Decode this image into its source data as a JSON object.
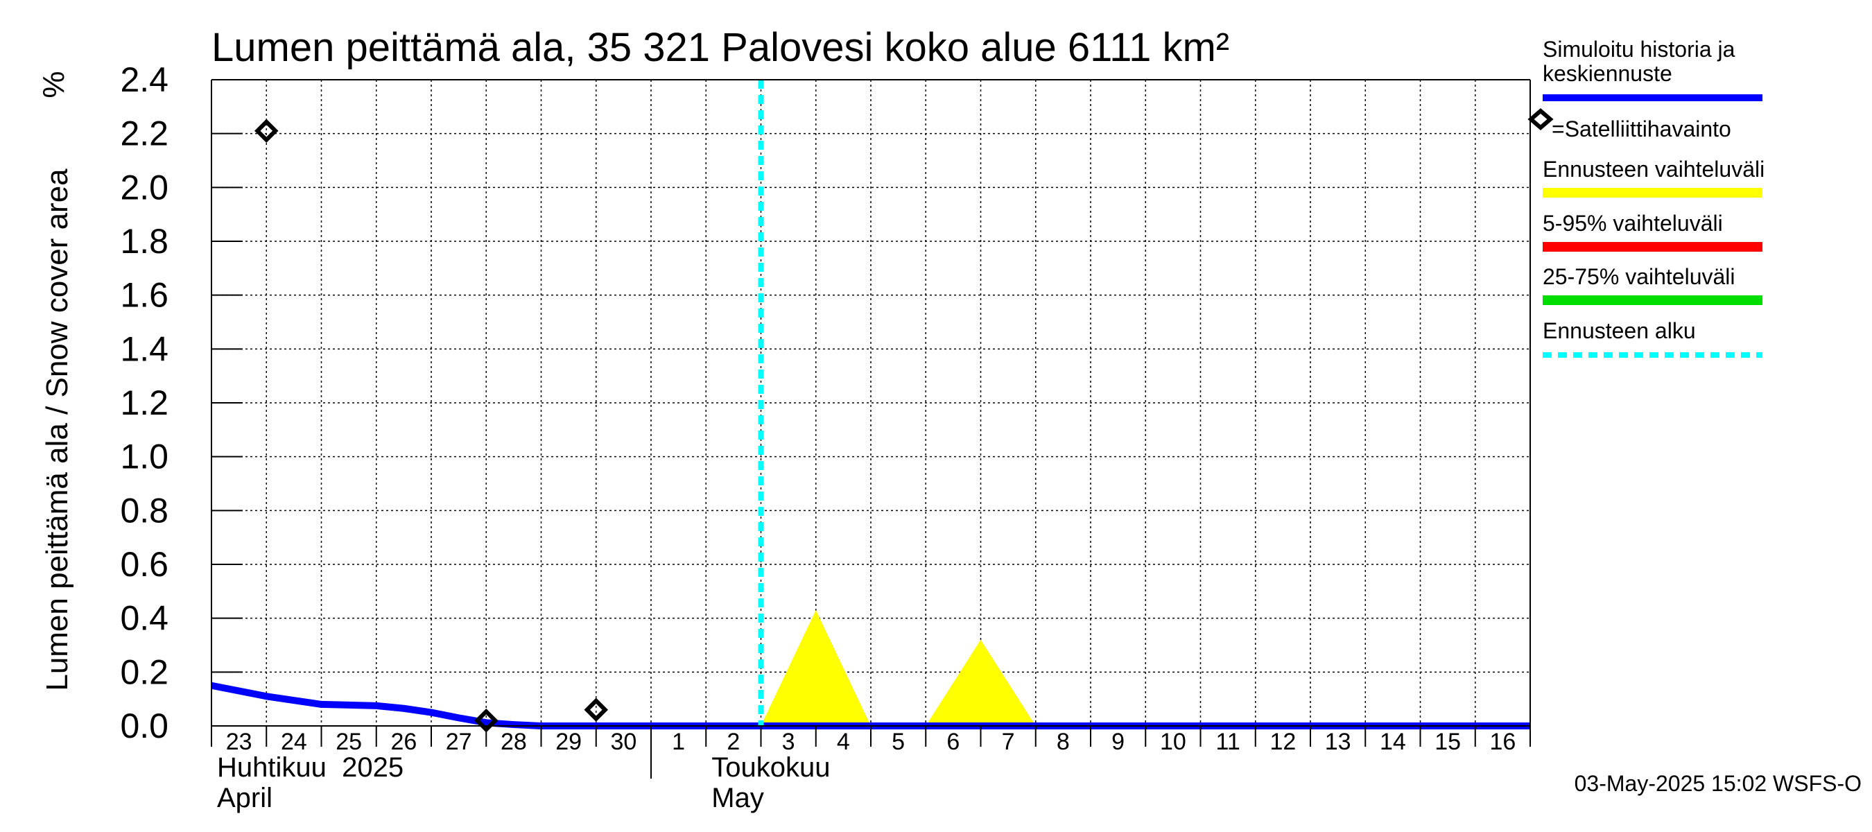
{
  "chart_data": {
    "type": "line",
    "title": "Lumen peittämä ala, 35 321 Palovesi koko alue 6111 km²",
    "ylabel": "Lumen peittämä ala / Snow cover area",
    "yunit": "%",
    "ylim": [
      0,
      2.4
    ],
    "yticks": [
      "0.0",
      "0.2",
      "0.4",
      "0.6",
      "0.8",
      "1.0",
      "1.2",
      "1.4",
      "1.6",
      "1.8",
      "2.0",
      "2.2",
      "2.4"
    ],
    "x_start_day": 0,
    "x_end_day": 24,
    "grid": true,
    "x_tick_labels": [
      "23",
      "24",
      "25",
      "26",
      "27",
      "28",
      "29",
      "30",
      "1",
      "2",
      "3",
      "4",
      "5",
      "6",
      "7",
      "8",
      "9",
      "10",
      "11",
      "12",
      "13",
      "14",
      "15",
      "16"
    ],
    "month_labels": [
      {
        "fi": "Huhtikuu  2025",
        "en": "April",
        "day": 0
      },
      {
        "fi": "Toukokuu",
        "en": "May",
        "day": 9
      }
    ],
    "month_separator_day": 8,
    "forecast_start_day": 10,
    "series": [
      {
        "name": "Simuloitu historia ja keskiennuste",
        "color": "#0000ff",
        "x": [
          0,
          1,
          2,
          3,
          3.5,
          4,
          4.5,
          5,
          5.5,
          6,
          6.5,
          7,
          24
        ],
        "values": [
          0.15,
          0.11,
          0.08,
          0.075,
          0.065,
          0.05,
          0.03,
          0.012,
          0.005,
          0.0,
          0.0,
          0.0,
          0.0
        ]
      }
    ],
    "observations": {
      "name": "Satelliittihavainto",
      "x": [
        1,
        5,
        7
      ],
      "values": [
        2.21,
        0.02,
        0.06
      ]
    },
    "forecast_band": {
      "name": "Ennusteen vaihteluväli",
      "color": "#ffff00",
      "triangles": [
        {
          "x0": 10,
          "xpeak": 11,
          "x1": 12,
          "peak": 0.43
        },
        {
          "x0": 13,
          "xpeak": 14,
          "x1": 15,
          "peak": 0.32
        }
      ]
    }
  },
  "legend": {
    "sim_line1": "Simuloitu historia ja",
    "sim_line2": "keskiennuste",
    "sat": "=Satelliittihavainto",
    "yellow": "Ennusteen vaihteluväli",
    "red": "5-95% vaihteluväli",
    "green": "25-75% vaihteluväli",
    "start": "Ennusteen alku",
    "colors": {
      "sim": "#0000ff",
      "yellow": "#ffff00",
      "red": "#ff0000",
      "green": "#00dd00",
      "start": "#00ffff"
    }
  },
  "timestamp": "03-May-2025 15:02 WSFS-O"
}
